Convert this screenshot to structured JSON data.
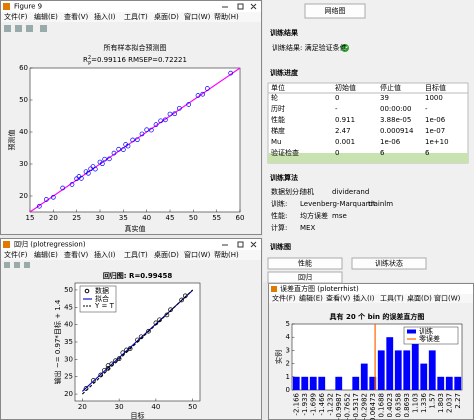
{
  "figure9": {
    "window_title": "Figure 9",
    "menu": [
      "文件(F)",
      "编辑(E)",
      "查看(V)",
      "插入(I)",
      "工具(T)",
      "桌面(D)",
      "窗口(W)",
      "帮助(H)"
    ]
  },
  "regression_window": {
    "window_title": "回归 (plotregression)",
    "menu": [
      "文件(F)",
      "编辑(E)",
      "查看(V)",
      "插入(I)",
      "工具(T)",
      "桌面(D)",
      "窗口(W)",
      "帮助(H)"
    ]
  },
  "hist_window": {
    "window_title": "误差直方图 (ploterrhist)",
    "menu": [
      "文件(F)",
      "编辑(E)",
      "查看(V)",
      "插入(I)",
      "工具(T)",
      "桌面(D)",
      "窗口(W)"
    ]
  },
  "training": {
    "network_button": "网络图",
    "results_heading": "训练结果",
    "result_text": "训练结果: 满足验证条件",
    "progress_heading": "训练进度",
    "table": {
      "header": [
        "单位",
        "初始值",
        "停止值",
        "目标值"
      ],
      "rows": [
        [
          "轮",
          "0",
          "39",
          "1000"
        ],
        [
          "历时",
          "-",
          "00:00:00",
          "-"
        ],
        [
          "性能",
          "0.911",
          "3.88e-05",
          "1e-06"
        ],
        [
          "梯度",
          "2.47",
          "0.000914",
          "1e-07"
        ],
        [
          "Mu",
          "0.001",
          "1e-06",
          "1e+10"
        ],
        [
          "验证检查",
          "0",
          "6",
          "6"
        ]
      ]
    },
    "algorithm_heading": "训练算法",
    "algorithm_rows": [
      [
        "数据划分:",
        "随机",
        "dividerand"
      ],
      [
        "训练:",
        "Levenberg-Marquardt",
        "trainlm"
      ],
      [
        "性能:",
        "均方误差",
        "mse"
      ],
      [
        "计算:",
        "MEX"
      ]
    ],
    "plots_heading": "训练图",
    "plot_buttons": [
      "性能",
      "训练状态",
      "回归"
    ]
  },
  "chart_data": [
    {
      "type": "scatter",
      "title": "所有样本拟合预测图",
      "subtitle": {
        "base": "R",
        "sup": "2",
        "sub": "P",
        "rest": "=0.99116  RMSEP=0.72221"
      },
      "xlabel": "真实值",
      "ylabel": "预测值",
      "xlim": [
        15,
        60
      ],
      "ylim": [
        15,
        60
      ],
      "xticks": [
        15,
        20,
        25,
        30,
        35,
        40,
        45,
        50,
        55,
        60
      ],
      "yticks": [
        20,
        30,
        40,
        50,
        60
      ],
      "series": [
        {
          "color": "#0000ff",
          "x": [
            17,
            18.5,
            20,
            22,
            24,
            25,
            25.5,
            26,
            27,
            27.5,
            28,
            28.5,
            29,
            30,
            30.5,
            31,
            32,
            33,
            34,
            35,
            35.5,
            36,
            37,
            38,
            39,
            40,
            41,
            42,
            43,
            44,
            45,
            46,
            47,
            49,
            51,
            52,
            53,
            58
          ],
          "y": [
            16.8,
            18.9,
            19.6,
            22.5,
            23.6,
            25.4,
            26.1,
            25.5,
            27.6,
            27.1,
            28.5,
            29.2,
            28.4,
            30.6,
            30.1,
            31.5,
            31.6,
            33.4,
            34.6,
            34.5,
            36.1,
            35.6,
            37.5,
            37.6,
            39.4,
            40.7,
            40.6,
            42.3,
            43.5,
            43.8,
            45.6,
            45.7,
            47.4,
            48.6,
            51.4,
            51.8,
            53.6,
            58.4
          ]
        }
      ],
      "lines": [
        {
          "color": "#ff00ff",
          "x": [
            15,
            60
          ],
          "y": [
            15,
            60
          ]
        }
      ]
    },
    {
      "type": "scatter",
      "title": "回归图: R=0.99458",
      "xlabel": "目标",
      "ylabel": "输出 ~= 0.97*目标 + 1.4",
      "xlim": [
        18,
        52
      ],
      "ylim": [
        18,
        52
      ],
      "xticks": [
        20,
        30,
        40,
        50
      ],
      "yticks": [
        20,
        25,
        30,
        35,
        40,
        45,
        50
      ],
      "series": [
        {
          "name": "数据",
          "color": "#000000",
          "x": [
            21,
            23,
            25,
            26,
            27,
            27,
            28,
            29,
            30,
            31,
            32,
            33,
            35,
            36,
            38,
            40,
            41,
            43,
            44,
            47,
            48
          ],
          "y": [
            21.6,
            23.9,
            25.5,
            26.8,
            28.2,
            27.4,
            28.7,
            29.6,
            30.2,
            31.9,
            32.7,
            33.1,
            35.6,
            36.5,
            38.1,
            40.5,
            41.4,
            42.8,
            44.3,
            47.1,
            48.3
          ]
        }
      ],
      "lines": [
        {
          "name": "拟合",
          "color": "#0000cc",
          "x": [
            20,
            50
          ],
          "y": [
            20.8,
            49.9
          ]
        },
        {
          "name": "Y = T",
          "color": "#000000",
          "dash": true,
          "x": [
            20,
            50
          ],
          "y": [
            20,
            50
          ]
        }
      ]
    },
    {
      "type": "bar",
      "title": "具有 20 个 bin 的误差直方图",
      "ylabel": "实例",
      "ylim": [
        0,
        5
      ],
      "yticks": [
        0,
        1,
        2,
        3,
        4,
        5
      ],
      "categories": [
        -2.166,
        -1.933,
        -1.699,
        -1.466,
        -1.232,
        -0.9987,
        -0.7652,
        -0.5317,
        -0.2982,
        -0.06473,
        0.1688,
        0.4023,
        0.6358,
        0.8693,
        1.103,
        1.336,
        1.57,
        1.803,
        2.037,
        2.27
      ],
      "series": [
        {
          "name": "训练",
          "color": "#0000ff",
          "values": [
            1,
            1,
            1,
            1,
            0,
            1,
            0,
            1,
            2,
            1,
            3,
            4,
            3,
            3,
            4,
            2,
            3,
            1,
            1,
            1
          ]
        }
      ],
      "zero_line": {
        "name": "零误差",
        "color": "#ff6600"
      }
    }
  ]
}
